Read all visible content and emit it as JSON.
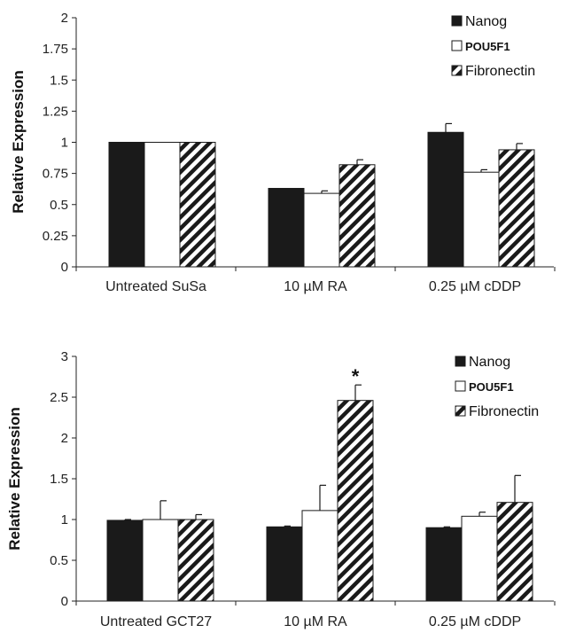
{
  "colors": {
    "nanog": "#1a1a1a",
    "pou5f1": "#ffffff",
    "fibronectin_stripe": "#1a1a1a",
    "axis": "#222222"
  },
  "chart_data": [
    {
      "type": "bar",
      "title": "",
      "xlabel": "",
      "ylabel": "Relative Expression",
      "ylim": [
        0,
        2
      ],
      "yticks": [
        "0",
        "0.25",
        "0.5",
        "0.75",
        "1",
        "1.25",
        "1.5",
        "1.75",
        "2"
      ],
      "yticks_values": [
        0,
        0.25,
        0.5,
        0.75,
        1,
        1.25,
        1.5,
        1.75,
        2
      ],
      "categories": [
        "Untreated SuSa",
        "10 µM RA",
        "0.25 µM cDDP"
      ],
      "legend_position": "top-right",
      "grid": false,
      "series": [
        {
          "name": "Nanog",
          "pattern": "solid-black",
          "values": [
            1.0,
            0.63,
            1.08
          ],
          "errors": [
            0,
            0,
            0.07
          ]
        },
        {
          "name": "POU5F1",
          "pattern": "white",
          "values": [
            1.0,
            0.59,
            0.76
          ],
          "errors": [
            0,
            0.02,
            0.02
          ]
        },
        {
          "name": "Fibronectin",
          "pattern": "diagonal-stripes",
          "values": [
            1.0,
            0.82,
            0.94
          ],
          "errors": [
            0,
            0.04,
            0.05
          ]
        }
      ],
      "annotations": []
    },
    {
      "type": "bar",
      "title": "",
      "xlabel": "",
      "ylabel": "Relative Expression",
      "ylim": [
        0,
        3
      ],
      "yticks": [
        "0",
        "0.5",
        "1",
        "1.5",
        "2",
        "2.5",
        "3"
      ],
      "yticks_values": [
        0,
        0.5,
        1,
        1.5,
        2,
        2.5,
        3
      ],
      "categories": [
        "Untreated GCT27",
        "10 µM RA",
        "0.25 µM cDDP"
      ],
      "legend_position": "top-right",
      "grid": false,
      "series": [
        {
          "name": "Nanog",
          "pattern": "solid-black",
          "values": [
            0.99,
            0.91,
            0.9
          ],
          "errors": [
            0.01,
            0.01,
            0.01
          ]
        },
        {
          "name": "POU5F1",
          "pattern": "white",
          "values": [
            1.0,
            1.11,
            1.04
          ],
          "errors": [
            0.23,
            0.31,
            0.05
          ]
        },
        {
          "name": "Fibronectin",
          "pattern": "diagonal-stripes",
          "values": [
            1.0,
            2.46,
            1.21
          ],
          "errors": [
            0.06,
            0.19,
            0.33
          ]
        }
      ],
      "annotations": [
        {
          "text": "*",
          "category_index": 1,
          "series_index": 2
        }
      ]
    }
  ]
}
